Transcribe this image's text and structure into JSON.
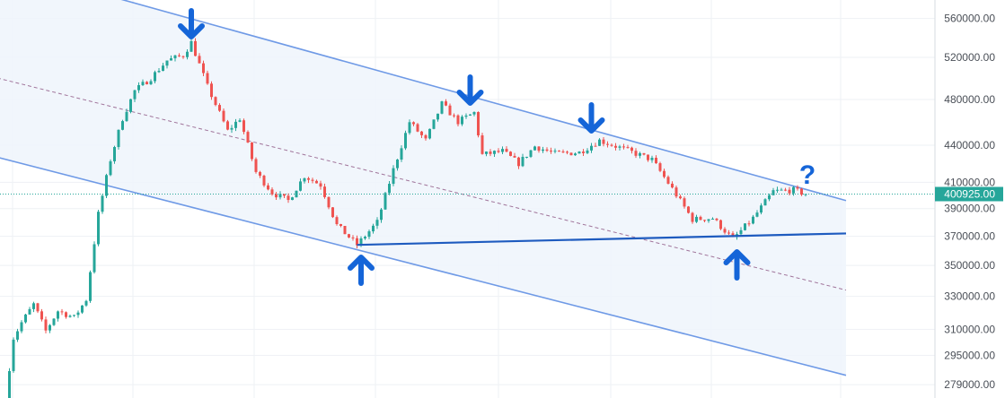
{
  "colors": {
    "up": "#26a69a",
    "down": "#ef5350",
    "grid": "#eef1f4",
    "axis_text": "#4a4f57",
    "channel_line": "#6f9ae6",
    "channel_fill": "#eef4fc",
    "midline": "#a0749a",
    "support_line": "#1e5bbf",
    "arrow": "#1565d8",
    "price_line": "#26a69a",
    "price_label_bg": "#26a69a",
    "price_label_text": "#ffffff"
  },
  "price_axis": {
    "ticks": [
      {
        "value": 560000,
        "label": "560000.00"
      },
      {
        "value": 520000,
        "label": "520000.00"
      },
      {
        "value": 480000,
        "label": "480000.00"
      },
      {
        "value": 440000,
        "label": "440000.00"
      },
      {
        "value": 410000,
        "label": "410000.00"
      },
      {
        "value": 390000,
        "label": "390000.00"
      },
      {
        "value": 370000,
        "label": "370000.00"
      },
      {
        "value": 350000,
        "label": "350000.00"
      },
      {
        "value": 330000,
        "label": "330000.00"
      },
      {
        "value": 310000,
        "label": "310000.00"
      },
      {
        "value": 295000,
        "label": "295000.00"
      },
      {
        "value": 279000,
        "label": "279000.00"
      }
    ]
  },
  "current_price": {
    "value": 400925,
    "label": "400925.00"
  },
  "annotation": {
    "question_mark": "?"
  },
  "chart_data": {
    "type": "candlestick",
    "scale": "log",
    "ylim": [
      272000,
      580000
    ],
    "bars": 225,
    "series": [
      {
        "bar": 0,
        "price": 272000
      },
      {
        "bar": 2,
        "price": 305000
      },
      {
        "bar": 4,
        "price": 314000
      },
      {
        "bar": 7,
        "price": 325000
      },
      {
        "bar": 10,
        "price": 309000
      },
      {
        "bar": 13,
        "price": 321000
      },
      {
        "bar": 17,
        "price": 317000
      },
      {
        "bar": 20,
        "price": 328000
      },
      {
        "bar": 23,
        "price": 386000
      },
      {
        "bar": 26,
        "price": 428000
      },
      {
        "bar": 29,
        "price": 463000
      },
      {
        "bar": 32,
        "price": 488000
      },
      {
        "bar": 36,
        "price": 500000
      },
      {
        "bar": 40,
        "price": 517000
      },
      {
        "bar": 44,
        "price": 522000
      },
      {
        "bar": 46,
        "price": 535000
      },
      {
        "bar": 50,
        "price": 492000
      },
      {
        "bar": 55,
        "price": 452000
      },
      {
        "bar": 58,
        "price": 463000
      },
      {
        "bar": 62,
        "price": 418000
      },
      {
        "bar": 66,
        "price": 402000
      },
      {
        "bar": 70,
        "price": 396000
      },
      {
        "bar": 74,
        "price": 415000
      },
      {
        "bar": 78,
        "price": 408000
      },
      {
        "bar": 82,
        "price": 378000
      },
      {
        "bar": 87,
        "price": 364000
      },
      {
        "bar": 92,
        "price": 380000
      },
      {
        "bar": 96,
        "price": 420000
      },
      {
        "bar": 100,
        "price": 460000
      },
      {
        "bar": 104,
        "price": 444000
      },
      {
        "bar": 108,
        "price": 476000
      },
      {
        "bar": 112,
        "price": 460000
      },
      {
        "bar": 116,
        "price": 468000
      },
      {
        "bar": 118,
        "price": 432000
      },
      {
        "bar": 123,
        "price": 435000
      },
      {
        "bar": 127,
        "price": 425000
      },
      {
        "bar": 131,
        "price": 439000
      },
      {
        "bar": 136,
        "price": 433000
      },
      {
        "bar": 142,
        "price": 434000
      },
      {
        "bar": 147,
        "price": 444000
      },
      {
        "bar": 152,
        "price": 438000
      },
      {
        "bar": 160,
        "price": 428000
      },
      {
        "bar": 165,
        "price": 405000
      },
      {
        "bar": 170,
        "price": 382000
      },
      {
        "bar": 175,
        "price": 383000
      },
      {
        "bar": 180,
        "price": 368000
      },
      {
        "bar": 185,
        "price": 383000
      },
      {
        "bar": 190,
        "price": 403000
      },
      {
        "bar": 195,
        "price": 404000
      },
      {
        "bar": 198,
        "price": 400925
      }
    ],
    "channel": {
      "upper": [
        {
          "bar": -2,
          "price": 620000
        },
        {
          "bar": 208,
          "price": 396000
        }
      ],
      "lower": [
        {
          "bar": -2,
          "price": 430000
        },
        {
          "bar": 208,
          "price": 284000
        }
      ],
      "mid": [
        {
          "bar": -2,
          "price": 500000
        },
        {
          "bar": 208,
          "price": 334000
        }
      ]
    },
    "support_line": [
      {
        "bar": 87,
        "price": 364000
      },
      {
        "bar": 208,
        "price": 372000
      }
    ],
    "markers": [
      {
        "kind": "arrow-down",
        "bar": 46
      },
      {
        "kind": "arrow-down",
        "bar": 115
      },
      {
        "kind": "arrow-down",
        "bar": 145
      },
      {
        "kind": "arrow-up",
        "bar": 88
      },
      {
        "kind": "arrow-up",
        "bar": 181
      },
      {
        "kind": "question-mark",
        "bar": 198
      }
    ]
  }
}
